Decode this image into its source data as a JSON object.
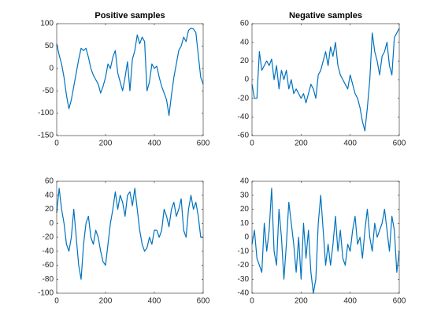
{
  "chart_data": [
    {
      "type": "line",
      "title": "Positive samples",
      "x": [
        0,
        10,
        20,
        30,
        40,
        50,
        60,
        70,
        80,
        90,
        100,
        110,
        120,
        130,
        140,
        150,
        160,
        170,
        180,
        190,
        200,
        210,
        220,
        230,
        240,
        250,
        260,
        270,
        280,
        290,
        300,
        310,
        320,
        330,
        340,
        350,
        360,
        370,
        380,
        390,
        400,
        410,
        420,
        430,
        440,
        450,
        460,
        470,
        480,
        490,
        500,
        510,
        520,
        530,
        540,
        550,
        560,
        570,
        580,
        590,
        600
      ],
      "series": [
        {
          "color": "#0072bd",
          "values": [
            55,
            30,
            10,
            -20,
            -60,
            -90,
            -70,
            -40,
            -10,
            20,
            45,
            40,
            45,
            25,
            0,
            -15,
            -25,
            -35,
            -55,
            -40,
            -20,
            10,
            0,
            25,
            40,
            -10,
            -30,
            -50,
            -20,
            15,
            -50,
            20,
            40,
            75,
            55,
            70,
            60,
            -50,
            -30,
            10,
            0,
            5,
            -20,
            -40,
            -55,
            -70,
            -105,
            -60,
            -20,
            10,
            40,
            50,
            70,
            60,
            85,
            90,
            88,
            80,
            30,
            -20,
            -35
          ]
        }
      ],
      "xlim": [
        0,
        600
      ],
      "xticks": [
        0,
        200,
        400,
        600
      ],
      "ylim": [
        -150,
        100
      ],
      "yticks": [
        -150,
        -100,
        -50,
        0,
        50,
        100
      ]
    },
    {
      "type": "line",
      "title": "Negative samples",
      "x": [
        0,
        10,
        20,
        30,
        40,
        50,
        60,
        70,
        80,
        90,
        100,
        110,
        120,
        130,
        140,
        150,
        160,
        170,
        180,
        190,
        200,
        210,
        220,
        230,
        240,
        250,
        260,
        270,
        280,
        290,
        300,
        310,
        320,
        330,
        340,
        350,
        360,
        370,
        380,
        390,
        400,
        410,
        420,
        430,
        440,
        450,
        460,
        470,
        480,
        490,
        500,
        510,
        520,
        530,
        540,
        550,
        560,
        570,
        580,
        590,
        600
      ],
      "series": [
        {
          "color": "#0072bd",
          "values": [
            -5,
            -20,
            -20,
            30,
            10,
            15,
            20,
            15,
            22,
            0,
            15,
            -10,
            10,
            0,
            10,
            -10,
            0,
            -15,
            -10,
            -15,
            -20,
            -15,
            -25,
            -15,
            -5,
            -10,
            -20,
            5,
            10,
            20,
            30,
            15,
            35,
            25,
            40,
            15,
            5,
            0,
            -5,
            -10,
            5,
            -5,
            -15,
            -20,
            -30,
            -45,
            -55,
            -30,
            0,
            50,
            30,
            20,
            5,
            25,
            30,
            40,
            15,
            5,
            45,
            50,
            55
          ]
        }
      ],
      "xlim": [
        0,
        600
      ],
      "xticks": [
        0,
        200,
        400,
        600
      ],
      "ylim": [
        -60,
        60
      ],
      "yticks": [
        -60,
        -40,
        -20,
        0,
        20,
        40,
        60
      ]
    },
    {
      "type": "line",
      "x": [
        0,
        10,
        20,
        30,
        40,
        50,
        60,
        70,
        80,
        90,
        100,
        110,
        120,
        130,
        140,
        150,
        160,
        170,
        180,
        190,
        200,
        210,
        220,
        230,
        240,
        250,
        260,
        270,
        280,
        290,
        300,
        310,
        320,
        330,
        340,
        350,
        360,
        370,
        380,
        390,
        400,
        410,
        420,
        430,
        440,
        450,
        460,
        470,
        480,
        490,
        500,
        510,
        520,
        530,
        540,
        550,
        560,
        570,
        580,
        590,
        600
      ],
      "series": [
        {
          "color": "#0072bd",
          "values": [
            15,
            50,
            20,
            0,
            -30,
            -40,
            -20,
            20,
            -20,
            -60,
            -80,
            -30,
            0,
            10,
            -20,
            -30,
            -10,
            -20,
            -40,
            -55,
            -60,
            -30,
            0,
            20,
            45,
            20,
            40,
            30,
            10,
            40,
            45,
            25,
            50,
            20,
            -10,
            -30,
            -40,
            -35,
            -20,
            -30,
            -10,
            -10,
            -20,
            -10,
            20,
            10,
            -5,
            20,
            30,
            10,
            20,
            35,
            -10,
            -20,
            20,
            40,
            20,
            30,
            10,
            -20,
            -20
          ]
        }
      ],
      "xlim": [
        0,
        600
      ],
      "xticks": [
        0,
        200,
        400,
        600
      ],
      "ylim": [
        -100,
        60
      ],
      "yticks": [
        -100,
        -80,
        -60,
        -40,
        -20,
        0,
        20,
        40,
        60
      ]
    },
    {
      "type": "line",
      "x": [
        0,
        10,
        20,
        30,
        40,
        50,
        60,
        70,
        80,
        90,
        100,
        110,
        120,
        130,
        140,
        150,
        160,
        170,
        180,
        190,
        200,
        210,
        220,
        230,
        240,
        250,
        260,
        270,
        280,
        290,
        300,
        310,
        320,
        330,
        340,
        350,
        360,
        370,
        380,
        390,
        400,
        410,
        420,
        430,
        440,
        450,
        460,
        470,
        480,
        490,
        500,
        510,
        520,
        530,
        540,
        550,
        560,
        570,
        580,
        590,
        600
      ],
      "series": [
        {
          "color": "#0072bd",
          "values": [
            -5,
            5,
            -15,
            -20,
            -25,
            10,
            -10,
            5,
            35,
            -10,
            -20,
            20,
            0,
            -30,
            -5,
            25,
            10,
            -5,
            -25,
            0,
            -30,
            10,
            -15,
            5,
            -25,
            -40,
            -30,
            10,
            30,
            5,
            -20,
            -5,
            -20,
            -5,
            15,
            -10,
            5,
            -15,
            -20,
            -5,
            -10,
            5,
            15,
            -5,
            0,
            -15,
            5,
            20,
            0,
            -10,
            10,
            0,
            5,
            10,
            20,
            5,
            -10,
            15,
            5,
            -25,
            -10
          ]
        }
      ],
      "xlim": [
        0,
        600
      ],
      "xticks": [
        0,
        200,
        400,
        600
      ],
      "ylim": [
        -40,
        40
      ],
      "yticks": [
        -40,
        -30,
        -20,
        -10,
        0,
        10,
        20,
        30,
        40
      ]
    }
  ]
}
